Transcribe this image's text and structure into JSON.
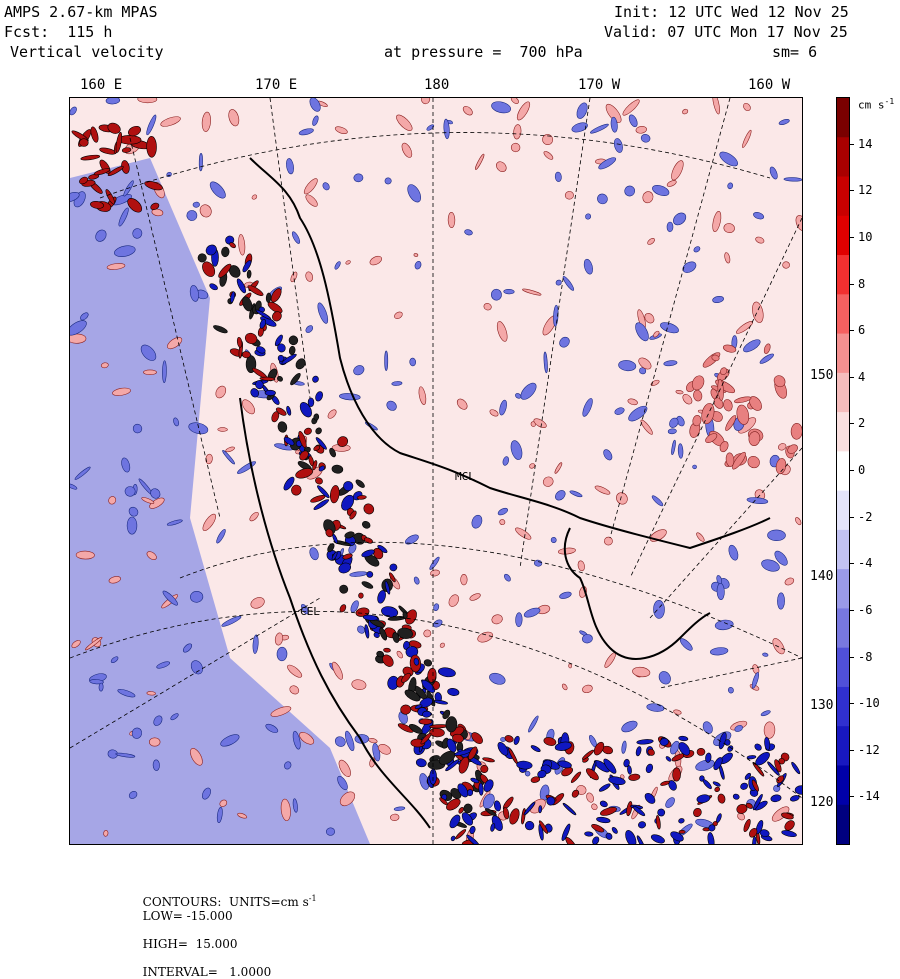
{
  "header": {
    "model": "AMPS 2.67-km MPAS",
    "forecast": "Fcst:  115 h",
    "field": "Vertical velocity",
    "init": "Init: 12 UTC Wed 12 Nov 25",
    "valid": "Valid: 07 UTC Mon 17 Nov 25",
    "pressure": "at pressure =  700 hPa",
    "smoothing": "sm= 6"
  },
  "longitude_labels": [
    "160 E",
    "170 E",
    "180",
    "170 W",
    "160 W"
  ],
  "latitude_labels": [
    "150 W",
    "140 W",
    "130 W",
    "120 W"
  ],
  "station_labels": [
    "MCL",
    "CEL"
  ],
  "colorbar": {
    "units": "cm s",
    "units_exp": "-1",
    "levels": [
      "14",
      "12",
      "10",
      "8",
      "6",
      "4",
      "2",
      "0",
      "-2",
      "-4",
      "-6",
      "-8",
      "-10",
      "-12",
      "-14"
    ],
    "colors": [
      "#7a0000",
      "#a80000",
      "#c80000",
      "#e00000",
      "#f23030",
      "#f56060",
      "#f49090",
      "#f5bcbc",
      "#fae0e0",
      "#ffffff",
      "#e4e4fa",
      "#c2c2f2",
      "#9a9ae8",
      "#7878e0",
      "#5050d8",
      "#3030d0",
      "#1818c0",
      "#0000a8",
      "#000080"
    ]
  },
  "footer": {
    "text": "CONTOURS:  UNITS=cm s",
    "exp": "-1",
    "low": "LOW= -15.000",
    "high": "HIGH=  15.000",
    "interval": "INTERVAL=   1.0000"
  },
  "palette": {
    "pos": "#f4a8a8",
    "neg": "#6e74e0",
    "posStrong": "#b01010",
    "negStrong": "#1018c0",
    "bg": "#fbe8e8"
  }
}
